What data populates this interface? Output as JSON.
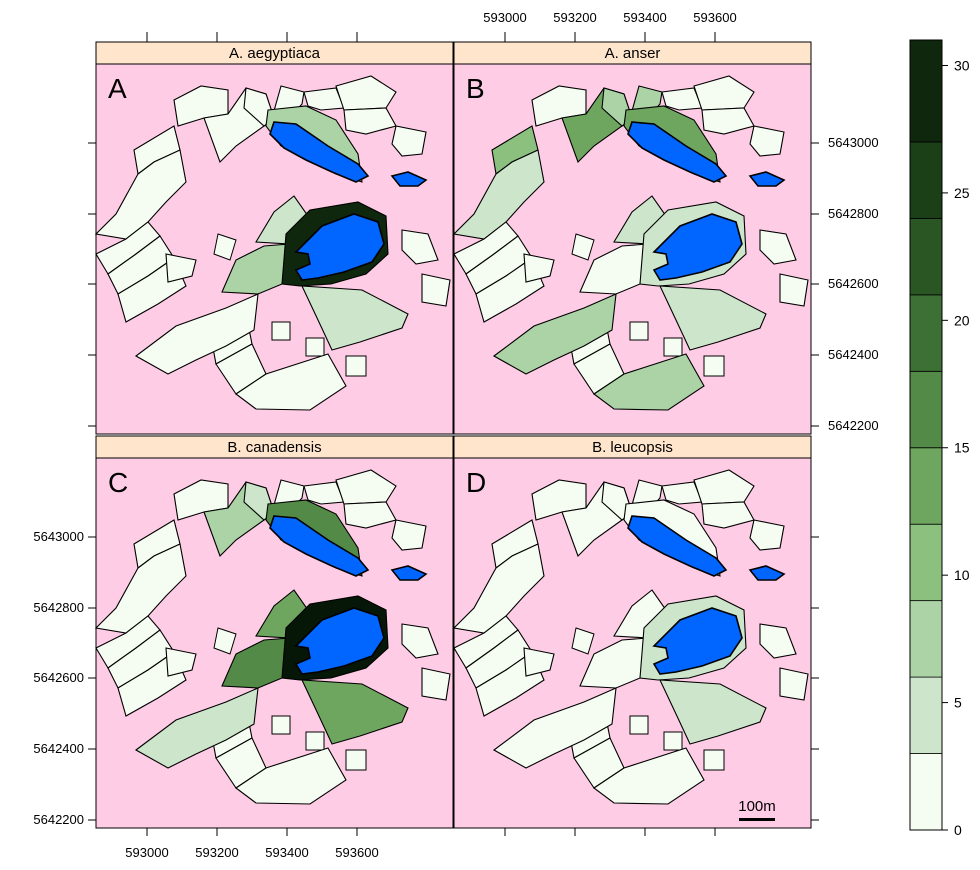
{
  "panels": [
    {
      "id": "A",
      "letter": "A",
      "title": "A. aegyptiaca",
      "fills": {
        "n1": 0,
        "n2": 0,
        "n3": 0,
        "n4": 0,
        "n5": 0,
        "n6": 0,
        "n7": 0,
        "n8": 0,
        "w1": 0,
        "w2": 0,
        "w3": 0,
        "w4": 0,
        "w5": 0,
        "w6": 0,
        "s1": 0,
        "s2": 0,
        "s3": 0,
        "e1": 0,
        "e2": 0,
        "ring_upper": 8,
        "inner_left": 4,
        "inner_mid": 6,
        "ring_lower": 28,
        "sw_fan": 0,
        "s_fan": 4
      }
    },
    {
      "id": "B",
      "letter": "B",
      "title": "A. anser",
      "fills": {
        "n1": 0,
        "n2": 12,
        "n3": 7,
        "n4": 6,
        "n5": 0,
        "n6": 0,
        "n7": 0,
        "n8": 0,
        "w1": 11,
        "w2": 5,
        "w3": 0,
        "w4": 0,
        "w5": 0,
        "w6": 0,
        "s1": 0,
        "s2": 0,
        "s3": 8,
        "e1": 0,
        "e2": 0,
        "ring_upper": 13,
        "inner_left": 4,
        "inner_mid": 0,
        "ring_lower": 4,
        "sw_fan": 8,
        "s_fan": 4
      }
    },
    {
      "id": "C",
      "letter": "C",
      "title": "B. canadensis",
      "fills": {
        "n1": 0,
        "n2": 6,
        "n3": 4,
        "n4": 0,
        "n5": 0,
        "n6": 0,
        "n7": 0,
        "n8": 0,
        "w1": 0,
        "w2": 0,
        "w3": 0,
        "w4": 0,
        "w5": 0,
        "w6": 0,
        "s1": 0,
        "s2": 0,
        "s3": 0,
        "e1": 0,
        "e2": 0,
        "ring_upper": 15,
        "inner_left": 14,
        "inner_mid": 16,
        "ring_lower": 31,
        "sw_fan": 5,
        "s_fan": 14
      }
    },
    {
      "id": "D",
      "letter": "D",
      "title": "B. leucopsis",
      "fills": {
        "n1": 0,
        "n2": 0,
        "n3": 0,
        "n4": 0,
        "n5": 0,
        "n6": 0,
        "n7": 0,
        "n8": 0,
        "w1": 0,
        "w2": 0,
        "w3": 0,
        "w4": 0,
        "w5": 0,
        "w6": 0,
        "s1": 0,
        "s2": 0,
        "s3": 0,
        "e1": 0,
        "e2": 0,
        "ring_upper": 0,
        "inner_left": 0,
        "inner_mid": 0,
        "ring_lower": 4,
        "sw_fan": 0,
        "s_fan": 4
      }
    }
  ],
  "x_tick_labels": [
    "593000",
    "593200",
    "593400",
    "593600"
  ],
  "y_tick_labels": [
    "5643000",
    "5642800",
    "5642600",
    "5642400",
    "5642200"
  ],
  "colorkey": {
    "breaks": [
      0,
      3,
      6,
      9,
      12,
      15,
      18,
      21,
      24,
      27,
      31
    ],
    "colors": [
      "#f5fcf1",
      "#cde6cb",
      "#abd3a6",
      "#8cc07f",
      "#6fa65f",
      "#538a47",
      "#3d7035",
      "#2a5624",
      "#1b3f16",
      "#0f270c",
      "#061607"
    ],
    "tick_labels": [
      "0",
      "5",
      "10",
      "15",
      "20",
      "25",
      "30"
    ]
  },
  "scalebar": {
    "label": "100m"
  },
  "colors": {
    "background": "#ffcce6",
    "strip": "#ffe5cc",
    "lake": "#0066ff",
    "outline": "#000000"
  }
}
